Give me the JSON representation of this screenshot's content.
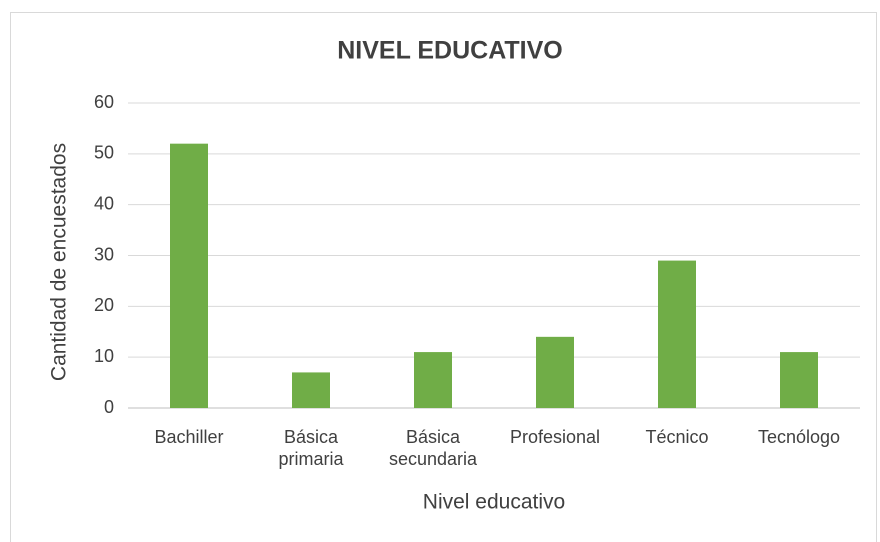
{
  "chart_data": {
    "type": "bar",
    "title": "NIVEL EDUCATIVO",
    "x_label": "Nivel educativo",
    "y_label": "Cantidad de encuestados",
    "categories": [
      "Bachiller",
      "Básica primaria",
      "Básica secundaria",
      "Profesional",
      "Técnico",
      "Tecnólogo"
    ],
    "values": [
      52,
      7,
      11,
      14,
      29,
      11
    ],
    "color": "#70ad47",
    "ylim": [
      0,
      60
    ],
    "yticks": [
      0,
      10,
      20,
      30,
      40,
      50,
      60
    ],
    "grid": true
  }
}
